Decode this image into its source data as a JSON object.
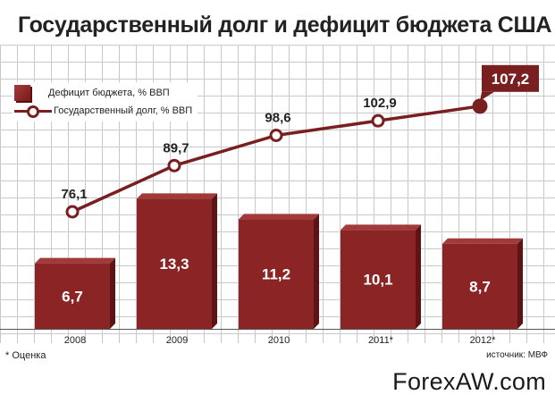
{
  "title": "Государственный долг и дефицит бюджета США",
  "legend": {
    "deficit": "Дефицит бюджета, % ВВП",
    "debt": "Государственный долг, % ВВП"
  },
  "footnote": "* Оценка",
  "source": "источник: МВФ",
  "watermark": "ForexAW.com",
  "colors": {
    "bar": "#8b2525",
    "bar_side": "#5e1414",
    "line": "#7a1f1f",
    "grid": "#c9c9c9"
  },
  "chart_data": {
    "type": "bar",
    "title": "Государственный долг и дефицит бюджета США",
    "categories": [
      "2008",
      "2009",
      "2010",
      "2011*",
      "2012*"
    ],
    "series": [
      {
        "name": "Дефицит бюджета, % ВВП",
        "type": "bar",
        "values": [
          6.7,
          13.3,
          11.2,
          10.1,
          8.7
        ],
        "labels": [
          "6,7",
          "13,3",
          "11,2",
          "10,1",
          "8,7"
        ]
      },
      {
        "name": "Государственный долг, % ВВП",
        "type": "line",
        "values": [
          76.1,
          89.7,
          98.6,
          102.9,
          107.2
        ],
        "labels": [
          "76,1",
          "89,7",
          "98,6",
          "102,9",
          "107,2"
        ],
        "highlight_last": true
      }
    ],
    "grid": true,
    "legend_position": "top-left"
  }
}
